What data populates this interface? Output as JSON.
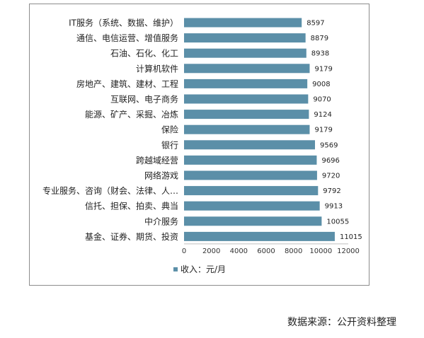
{
  "chart_data": {
    "type": "bar",
    "orientation": "horizontal",
    "categories": [
      "IT服务（系统、数据、维护）",
      "通信、电信运营、增值服务",
      "石油、石化、化工",
      "计算机软件",
      "房地产、建筑、建材、工程",
      "互联网、电子商务",
      "能源、矿产、采掘、冶炼",
      "保险",
      "银行",
      "跨越域经营",
      "网络游戏",
      "专业服务、咨询（财会、法律、人…",
      "信托、担保、拍卖、典当",
      "中介服务",
      "基金、证券、期货、投资"
    ],
    "series": [
      {
        "name": "收入：元/月",
        "values": [
          8597,
          8879,
          8938,
          9179,
          9008,
          9070,
          9124,
          9179,
          9569,
          9696,
          9720,
          9792,
          9913,
          10055,
          11015
        ]
      }
    ],
    "xlim": [
      0,
      12000
    ],
    "xticks": [
      0,
      2000,
      4000,
      6000,
      8000,
      10000,
      12000
    ],
    "grid": false,
    "legend_position": "bottom-left",
    "bar_color": "#5b8fa8",
    "source_note": "数据来源：公开资料整理"
  }
}
